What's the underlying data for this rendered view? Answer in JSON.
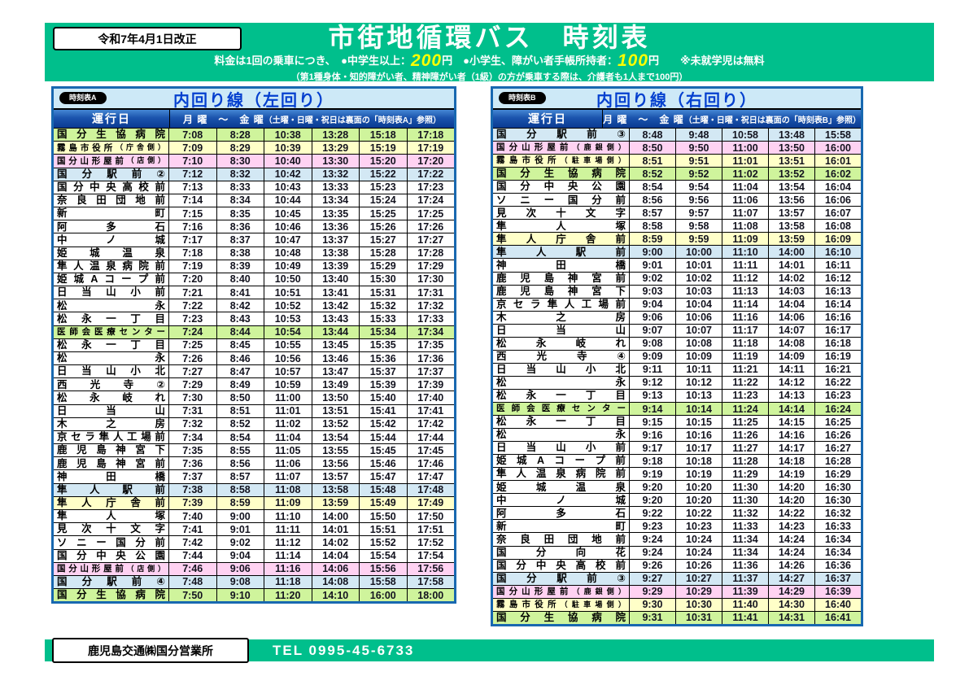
{
  "colors": {
    "band_green": "#00BF8C",
    "accent_blue": "#0540CF",
    "price_yellow": "#FFFF00",
    "green": "#CFF49C",
    "yellow": "#FFFFC8",
    "pink": "#FFD2F2",
    "blue": "#D3E8F4",
    "white": "#FFFFFF"
  },
  "header": {
    "revision": "令和7年4月1日改正",
    "title": "市街地循環バス　時刻表",
    "fare": {
      "part1": "料金は1回の乗車につき、　●中学生以上：",
      "price1": "200",
      "part2": "円　●小学生、障がい者手帳所持者：",
      "price2": "100",
      "part3": "円　　※未就学児は無料",
      "note": "（第1種身体・知的障がい者、精神障がい者（1級）の方が乗車する際は、介護者も1人まで100円）"
    }
  },
  "tables": [
    {
      "badge": "時刻表A",
      "title": "内回り線（左回り）",
      "day_label": "運行日",
      "day_range": "月 曜　～　金 曜",
      "day_note": "（土曜・日曜・祝日は裏面の「時刻表A」参照）",
      "rows": [
        {
          "stop": "国分生協病院",
          "bg": "green",
          "times": [
            "7:08",
            "8:28",
            "10:38",
            "13:28",
            "15:18",
            "17:18"
          ]
        },
        {
          "stop": "霧島市役所",
          "note": "（庁舎側）",
          "bg": "yellow",
          "times": [
            "7:09",
            "8:29",
            "10:39",
            "13:29",
            "15:19",
            "17:19"
          ]
        },
        {
          "stop": "国分山形屋前",
          "note": "（店側）",
          "bg": "pink",
          "times": [
            "7:10",
            "8:30",
            "10:40",
            "13:30",
            "15:20",
            "17:20"
          ]
        },
        {
          "stop": "国分駅前②",
          "bg": "blue",
          "times": [
            "7:12",
            "8:32",
            "10:42",
            "13:32",
            "15:22",
            "17:22"
          ]
        },
        {
          "stop": "国分中央高校前",
          "bg": "white",
          "times": [
            "7:13",
            "8:33",
            "10:43",
            "13:33",
            "15:23",
            "17:23"
          ]
        },
        {
          "stop": "奈良田団地前",
          "bg": "white",
          "times": [
            "7:14",
            "8:34",
            "10:44",
            "13:34",
            "15:24",
            "17:24"
          ]
        },
        {
          "stop": "新町",
          "bg": "white",
          "times": [
            "7:15",
            "8:35",
            "10:45",
            "13:35",
            "15:25",
            "17:25"
          ]
        },
        {
          "stop": "阿多石",
          "bg": "white",
          "times": [
            "7:16",
            "8:36",
            "10:46",
            "13:36",
            "15:26",
            "17:26"
          ]
        },
        {
          "stop": "中ノ城",
          "bg": "white",
          "times": [
            "7:17",
            "8:37",
            "10:47",
            "13:37",
            "15:27",
            "17:27"
          ]
        },
        {
          "stop": "姫城温泉",
          "bg": "white",
          "times": [
            "7:18",
            "8:38",
            "10:48",
            "13:38",
            "15:28",
            "17:28"
          ]
        },
        {
          "stop": "隼人温泉病院前",
          "bg": "white",
          "times": [
            "7:19",
            "8:39",
            "10:49",
            "13:39",
            "15:29",
            "17:29"
          ]
        },
        {
          "stop": "姫城Aコープ前",
          "bg": "white",
          "times": [
            "7:20",
            "8:40",
            "10:50",
            "13:40",
            "15:30",
            "17:30"
          ]
        },
        {
          "stop": "日当山小前",
          "bg": "white",
          "times": [
            "7:21",
            "8:41",
            "10:51",
            "13:41",
            "15:31",
            "17:31"
          ]
        },
        {
          "stop": "松永",
          "bg": "white",
          "times": [
            "7:22",
            "8:42",
            "10:52",
            "13:42",
            "15:32",
            "17:32"
          ]
        },
        {
          "stop": "松永一丁目",
          "bg": "white",
          "times": [
            "7:23",
            "8:43",
            "10:53",
            "13:43",
            "15:33",
            "17:33"
          ]
        },
        {
          "stop": "医師会医療センター",
          "bg": "green",
          "times": [
            "7:24",
            "8:44",
            "10:54",
            "13:44",
            "15:34",
            "17:34"
          ]
        },
        {
          "stop": "松永一丁目",
          "bg": "white",
          "times": [
            "7:25",
            "8:45",
            "10:55",
            "13:45",
            "15:35",
            "17:35"
          ]
        },
        {
          "stop": "松永",
          "bg": "white",
          "times": [
            "7:26",
            "8:46",
            "10:56",
            "13:46",
            "15:36",
            "17:36"
          ]
        },
        {
          "stop": "日当山小北",
          "bg": "white",
          "times": [
            "7:27",
            "8:47",
            "10:57",
            "13:47",
            "15:37",
            "17:37"
          ]
        },
        {
          "stop": "西光寺②",
          "bg": "white",
          "times": [
            "7:29",
            "8:49",
            "10:59",
            "13:49",
            "15:39",
            "17:39"
          ]
        },
        {
          "stop": "松永岐れ",
          "bg": "white",
          "times": [
            "7:30",
            "8:50",
            "11:00",
            "13:50",
            "15:40",
            "17:40"
          ]
        },
        {
          "stop": "日当山",
          "bg": "white",
          "times": [
            "7:31",
            "8:51",
            "11:01",
            "13:51",
            "15:41",
            "17:41"
          ]
        },
        {
          "stop": "木之房",
          "bg": "white",
          "times": [
            "7:32",
            "8:52",
            "11:02",
            "13:52",
            "15:42",
            "17:42"
          ]
        },
        {
          "stop": "京セラ隼人工場前",
          "bg": "white",
          "times": [
            "7:34",
            "8:54",
            "11:04",
            "13:54",
            "15:44",
            "17:44"
          ]
        },
        {
          "stop": "鹿児島神宮下",
          "bg": "white",
          "times": [
            "7:35",
            "8:55",
            "11:05",
            "13:55",
            "15:45",
            "17:45"
          ]
        },
        {
          "stop": "鹿児島神宮前",
          "bg": "white",
          "times": [
            "7:36",
            "8:56",
            "11:06",
            "13:56",
            "15:46",
            "17:46"
          ]
        },
        {
          "stop": "神田橋",
          "bg": "white",
          "times": [
            "7:37",
            "8:57",
            "11:07",
            "13:57",
            "15:47",
            "17:47"
          ]
        },
        {
          "stop": "隼人駅前",
          "bg": "blue",
          "times": [
            "7:38",
            "8:58",
            "11:08",
            "13:58",
            "15:48",
            "17:48"
          ]
        },
        {
          "stop": "隼人庁舎前",
          "bg": "yellow",
          "times": [
            "7:39",
            "8:59",
            "11:09",
            "13:59",
            "15:49",
            "17:49"
          ]
        },
        {
          "stop": "隼人塚",
          "bg": "white",
          "times": [
            "7:40",
            "9:00",
            "11:10",
            "14:00",
            "15:50",
            "17:50"
          ]
        },
        {
          "stop": "見次十文字",
          "bg": "white",
          "times": [
            "7:41",
            "9:01",
            "11:11",
            "14:01",
            "15:51",
            "17:51"
          ]
        },
        {
          "stop": "ソニー国分前",
          "bg": "white",
          "times": [
            "7:42",
            "9:02",
            "11:12",
            "14:02",
            "15:52",
            "17:52"
          ]
        },
        {
          "stop": "国分中央公園",
          "bg": "white",
          "times": [
            "7:44",
            "9:04",
            "11:14",
            "14:04",
            "15:54",
            "17:54"
          ]
        },
        {
          "stop": "国分山形屋前",
          "note": "（店側）",
          "bg": "pink",
          "times": [
            "7:46",
            "9:06",
            "11:16",
            "14:06",
            "15:56",
            "17:56"
          ]
        },
        {
          "stop": "国分駅前④",
          "bg": "blue",
          "times": [
            "7:48",
            "9:08",
            "11:18",
            "14:08",
            "15:58",
            "17:58"
          ]
        },
        {
          "stop": "国分生協病院",
          "bg": "green",
          "times": [
            "7:50",
            "9:10",
            "11:20",
            "14:10",
            "16:00",
            "18:00"
          ]
        }
      ]
    },
    {
      "badge": "時刻表B",
      "title": "内回り線（右回り）",
      "day_label": "運行日",
      "day_range": "月 曜　～　金 曜",
      "day_note": "（土曜・日曜・祝日は裏面の「時刻表B」参照）",
      "rows": [
        {
          "stop": "国分駅前③",
          "bg": "blue",
          "times": [
            "8:48",
            "9:48",
            "10:58",
            "13:48",
            "15:58"
          ]
        },
        {
          "stop": "国分山形屋前",
          "note": "（鹿銀側）",
          "bg": "pink",
          "times": [
            "8:50",
            "9:50",
            "11:00",
            "13:50",
            "16:00"
          ]
        },
        {
          "stop": "霧島市役所",
          "note": "（駐車場側）",
          "bg": "yellow",
          "times": [
            "8:51",
            "9:51",
            "11:01",
            "13:51",
            "16:01"
          ]
        },
        {
          "stop": "国分生協病院",
          "bg": "green",
          "times": [
            "8:52",
            "9:52",
            "11:02",
            "13:52",
            "16:02"
          ]
        },
        {
          "stop": "国分中央公園",
          "bg": "white",
          "times": [
            "8:54",
            "9:54",
            "11:04",
            "13:54",
            "16:04"
          ]
        },
        {
          "stop": "ソニー国分前",
          "bg": "white",
          "times": [
            "8:56",
            "9:56",
            "11:06",
            "13:56",
            "16:06"
          ]
        },
        {
          "stop": "見次十文字",
          "bg": "white",
          "times": [
            "8:57",
            "9:57",
            "11:07",
            "13:57",
            "16:07"
          ]
        },
        {
          "stop": "隼人塚",
          "bg": "white",
          "times": [
            "8:58",
            "9:58",
            "11:08",
            "13:58",
            "16:08"
          ]
        },
        {
          "stop": "隼人庁舎前",
          "bg": "yellow",
          "times": [
            "8:59",
            "9:59",
            "11:09",
            "13:59",
            "16:09"
          ]
        },
        {
          "stop": "隼人駅前",
          "bg": "blue",
          "times": [
            "9:00",
            "10:00",
            "11:10",
            "14:00",
            "16:10"
          ]
        },
        {
          "stop": "神田橋",
          "bg": "white",
          "times": [
            "9:01",
            "10:01",
            "11:11",
            "14:01",
            "16:11"
          ]
        },
        {
          "stop": "鹿児島神宮前",
          "bg": "white",
          "times": [
            "9:02",
            "10:02",
            "11:12",
            "14:02",
            "16:12"
          ]
        },
        {
          "stop": "鹿児島神宮下",
          "bg": "white",
          "times": [
            "9:03",
            "10:03",
            "11:13",
            "14:03",
            "16:13"
          ]
        },
        {
          "stop": "京セラ隼人工場前",
          "bg": "white",
          "times": [
            "9:04",
            "10:04",
            "11:14",
            "14:04",
            "16:14"
          ]
        },
        {
          "stop": "木之房",
          "bg": "white",
          "times": [
            "9:06",
            "10:06",
            "11:16",
            "14:06",
            "16:16"
          ]
        },
        {
          "stop": "日当山",
          "bg": "white",
          "times": [
            "9:07",
            "10:07",
            "11:17",
            "14:07",
            "16:17"
          ]
        },
        {
          "stop": "松永岐れ",
          "bg": "white",
          "times": [
            "9:08",
            "10:08",
            "11:18",
            "14:08",
            "16:18"
          ]
        },
        {
          "stop": "西光寺④",
          "bg": "white",
          "times": [
            "9:09",
            "10:09",
            "11:19",
            "14:09",
            "16:19"
          ]
        },
        {
          "stop": "日当山小北",
          "bg": "white",
          "times": [
            "9:11",
            "10:11",
            "11:21",
            "14:11",
            "16:21"
          ]
        },
        {
          "stop": "松永",
          "bg": "white",
          "times": [
            "9:12",
            "10:12",
            "11:22",
            "14:12",
            "16:22"
          ]
        },
        {
          "stop": "松永一丁目",
          "bg": "white",
          "times": [
            "9:13",
            "10:13",
            "11:23",
            "14:13",
            "16:23"
          ]
        },
        {
          "stop": "医師会医療センター",
          "bg": "green",
          "times": [
            "9:14",
            "10:14",
            "11:24",
            "14:14",
            "16:24"
          ]
        },
        {
          "stop": "松永一丁目",
          "bg": "white",
          "times": [
            "9:15",
            "10:15",
            "11:25",
            "14:15",
            "16:25"
          ]
        },
        {
          "stop": "松永",
          "bg": "white",
          "times": [
            "9:16",
            "10:16",
            "11:26",
            "14:16",
            "16:26"
          ]
        },
        {
          "stop": "日当山小前",
          "bg": "white",
          "times": [
            "9:17",
            "10:17",
            "11:27",
            "14:17",
            "16:27"
          ]
        },
        {
          "stop": "姫城Aコープ前",
          "bg": "white",
          "times": [
            "9:18",
            "10:18",
            "11:28",
            "14:18",
            "16:28"
          ]
        },
        {
          "stop": "隼人温泉病院前",
          "bg": "white",
          "times": [
            "9:19",
            "10:19",
            "11:29",
            "14:19",
            "16:29"
          ]
        },
        {
          "stop": "姫城温泉",
          "bg": "white",
          "times": [
            "9:20",
            "10:20",
            "11:30",
            "14:20",
            "16:30"
          ]
        },
        {
          "stop": "中ノ城",
          "bg": "white",
          "times": [
            "9:20",
            "10:20",
            "11:30",
            "14:20",
            "16:30"
          ]
        },
        {
          "stop": "阿多石",
          "bg": "white",
          "times": [
            "9:22",
            "10:22",
            "11:32",
            "14:22",
            "16:32"
          ]
        },
        {
          "stop": "新町",
          "bg": "white",
          "times": [
            "9:23",
            "10:23",
            "11:33",
            "14:23",
            "16:33"
          ]
        },
        {
          "stop": "奈良田団地前",
          "bg": "white",
          "times": [
            "9:24",
            "10:24",
            "11:34",
            "14:24",
            "16:34"
          ]
        },
        {
          "stop": "国分向花",
          "bg": "white",
          "times": [
            "9:24",
            "10:24",
            "11:34",
            "14:24",
            "16:34"
          ]
        },
        {
          "stop": "国分中央高校前",
          "bg": "white",
          "times": [
            "9:26",
            "10:26",
            "11:36",
            "14:26",
            "16:36"
          ]
        },
        {
          "stop": "国分駅前③",
          "bg": "blue",
          "times": [
            "9:27",
            "10:27",
            "11:37",
            "14:27",
            "16:37"
          ]
        },
        {
          "stop": "国分山形屋前",
          "note": "（鹿銀側）",
          "bg": "pink",
          "times": [
            "9:29",
            "10:29",
            "11:39",
            "14:29",
            "16:39"
          ]
        },
        {
          "stop": "霧島市役所",
          "note": "（駐車場側）",
          "bg": "yellow",
          "times": [
            "9:30",
            "10:30",
            "11:40",
            "14:30",
            "16:40"
          ]
        },
        {
          "stop": "国分生協病院",
          "bg": "green",
          "times": [
            "9:31",
            "10:31",
            "11:41",
            "14:31",
            "16:41"
          ]
        }
      ]
    }
  ],
  "footer": {
    "office": "鹿児島交通㈱国分営業所",
    "tel": "TEL 0995-45-6733"
  }
}
